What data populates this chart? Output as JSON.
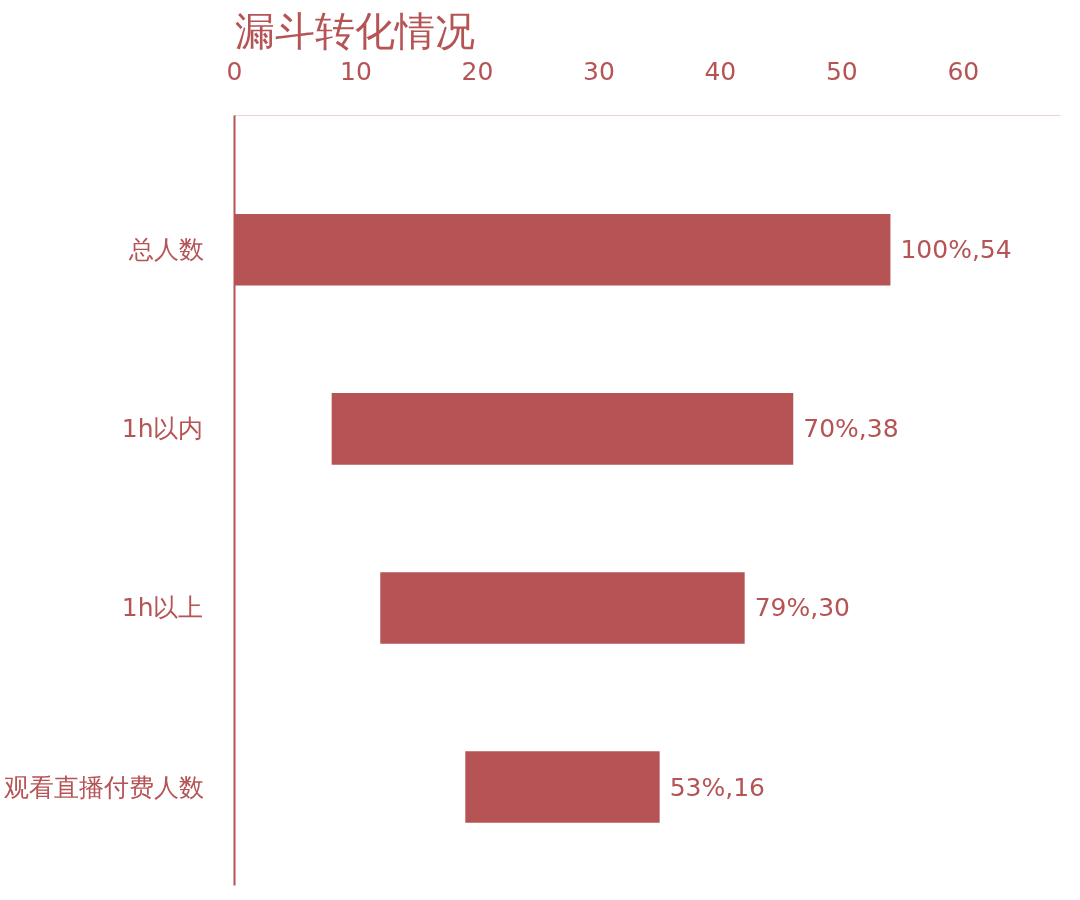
{
  "chart_data": {
    "type": "bar",
    "orientation": "horizontal",
    "title": "漏斗转化情况",
    "categories": [
      "总人数",
      "1h以内",
      "1h以上",
      "观看直播付费人数"
    ],
    "base": [
      0,
      8,
      12,
      19
    ],
    "values": [
      54,
      38,
      30,
      16
    ],
    "value_labels": [
      "100%,54",
      "70%,38",
      "79%,30",
      "53%,16"
    ],
    "color": "#b55355",
    "xlim": [
      0,
      68
    ],
    "xticks": [
      0,
      10,
      20,
      30,
      40,
      50,
      60
    ],
    "grid": false
  }
}
